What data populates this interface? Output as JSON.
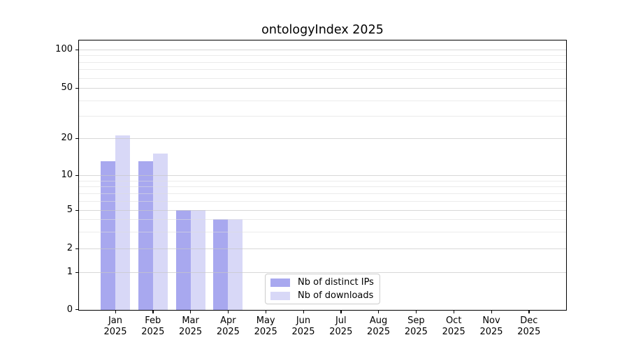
{
  "title": "ontologyIndex 2025",
  "legend": {
    "items": [
      {
        "label": "Nb of distinct IPs",
        "color": "#a8a8ef"
      },
      {
        "label": "Nb of downloads",
        "color": "#d8d8f7"
      }
    ]
  },
  "x_axis": {
    "months": [
      "Jan",
      "Feb",
      "Mar",
      "Apr",
      "May",
      "Jun",
      "Jul",
      "Aug",
      "Sep",
      "Oct",
      "Nov",
      "Dec"
    ],
    "year": "2025"
  },
  "y_axis": {
    "tick_labels": [
      "0",
      "1",
      "2",
      "5",
      "10",
      "20",
      "50",
      "100"
    ]
  },
  "chart_data": {
    "type": "bar",
    "title": "ontologyIndex 2025",
    "categories": [
      "Jan 2025",
      "Feb 2025",
      "Mar 2025",
      "Apr 2025",
      "May 2025",
      "Jun 2025",
      "Jul 2025",
      "Aug 2025",
      "Sep 2025",
      "Oct 2025",
      "Nov 2025",
      "Dec 2025"
    ],
    "series": [
      {
        "name": "Nb of distinct IPs",
        "color": "#a8a8ef",
        "values": [
          13,
          13,
          5,
          4,
          0,
          0,
          0,
          0,
          0,
          0,
          0,
          0
        ]
      },
      {
        "name": "Nb of downloads",
        "color": "#d8d8f7",
        "values": [
          21,
          15,
          5,
          4,
          0,
          0,
          0,
          0,
          0,
          0,
          0,
          0
        ]
      }
    ],
    "y_ticks": [
      0,
      1,
      2,
      5,
      10,
      20,
      50,
      100
    ],
    "y_scale": "symlog",
    "ylim": [
      0,
      100
    ],
    "grid": true,
    "legend_position": "lower center"
  }
}
